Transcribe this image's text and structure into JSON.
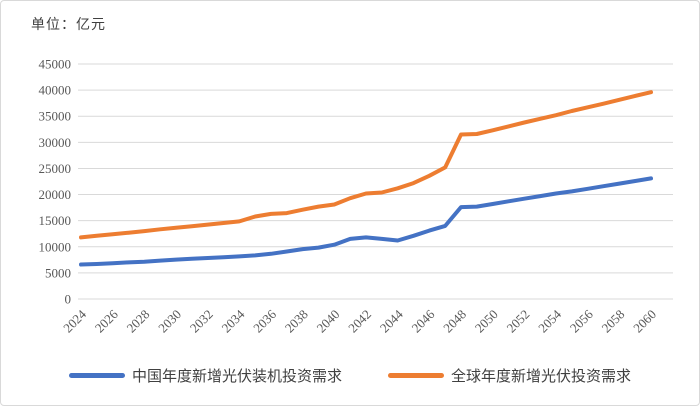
{
  "title": "单位：亿元",
  "chart_data": {
    "type": "line",
    "x": [
      2024,
      2025,
      2026,
      2027,
      2028,
      2029,
      2030,
      2031,
      2032,
      2033,
      2034,
      2035,
      2036,
      2037,
      2038,
      2039,
      2040,
      2041,
      2042,
      2043,
      2044,
      2045,
      2046,
      2047,
      2048,
      2049,
      2050,
      2051,
      2052,
      2053,
      2054,
      2055,
      2056,
      2057,
      2058,
      2059,
      2060
    ],
    "x_tick_labels": [
      "2024",
      "2026",
      "2028",
      "2030",
      "2032",
      "2034",
      "2036",
      "2038",
      "2040",
      "2042",
      "2044",
      "2046",
      "2048",
      "2050",
      "2052",
      "2054",
      "2056",
      "2058",
      "2060"
    ],
    "series": [
      {
        "name": "中国年度新增光伏装机投资需求",
        "color": "#4472C4",
        "values": [
          6600,
          6700,
          6850,
          7000,
          7150,
          7350,
          7550,
          7700,
          7850,
          8000,
          8150,
          8350,
          8650,
          9100,
          9550,
          9850,
          10400,
          11500,
          11800,
          11500,
          11200,
          12100,
          13100,
          14000,
          17600,
          17700,
          18200,
          18700,
          19200,
          19700,
          20200,
          20600,
          21100,
          21600,
          22100,
          22600,
          23100
        ]
      },
      {
        "name": "全球年度新增光伏投资需求",
        "color": "#ED7D31",
        "values": [
          11800,
          12100,
          12400,
          12700,
          13000,
          13350,
          13650,
          13950,
          14250,
          14550,
          14850,
          15800,
          16300,
          16450,
          17100,
          17700,
          18100,
          19300,
          20200,
          20400,
          21200,
          22200,
          23600,
          25200,
          31500,
          31600,
          32300,
          33050,
          33800,
          34500,
          35200,
          36000,
          36700,
          37400,
          38150,
          38900,
          39600
        ]
      }
    ],
    "ylim": [
      0,
      45000
    ],
    "y_tick_step": 5000,
    "y_tick_labels": [
      "0",
      "5000",
      "10000",
      "15000",
      "20000",
      "25000",
      "30000",
      "35000",
      "40000",
      "45000"
    ],
    "grid": "horizontal",
    "legend_position": "bottom"
  },
  "colors": {
    "grid": "#d9d9d9",
    "axis_text": "#595959",
    "legend_text": "#404040",
    "border": "#d9d9d9"
  }
}
